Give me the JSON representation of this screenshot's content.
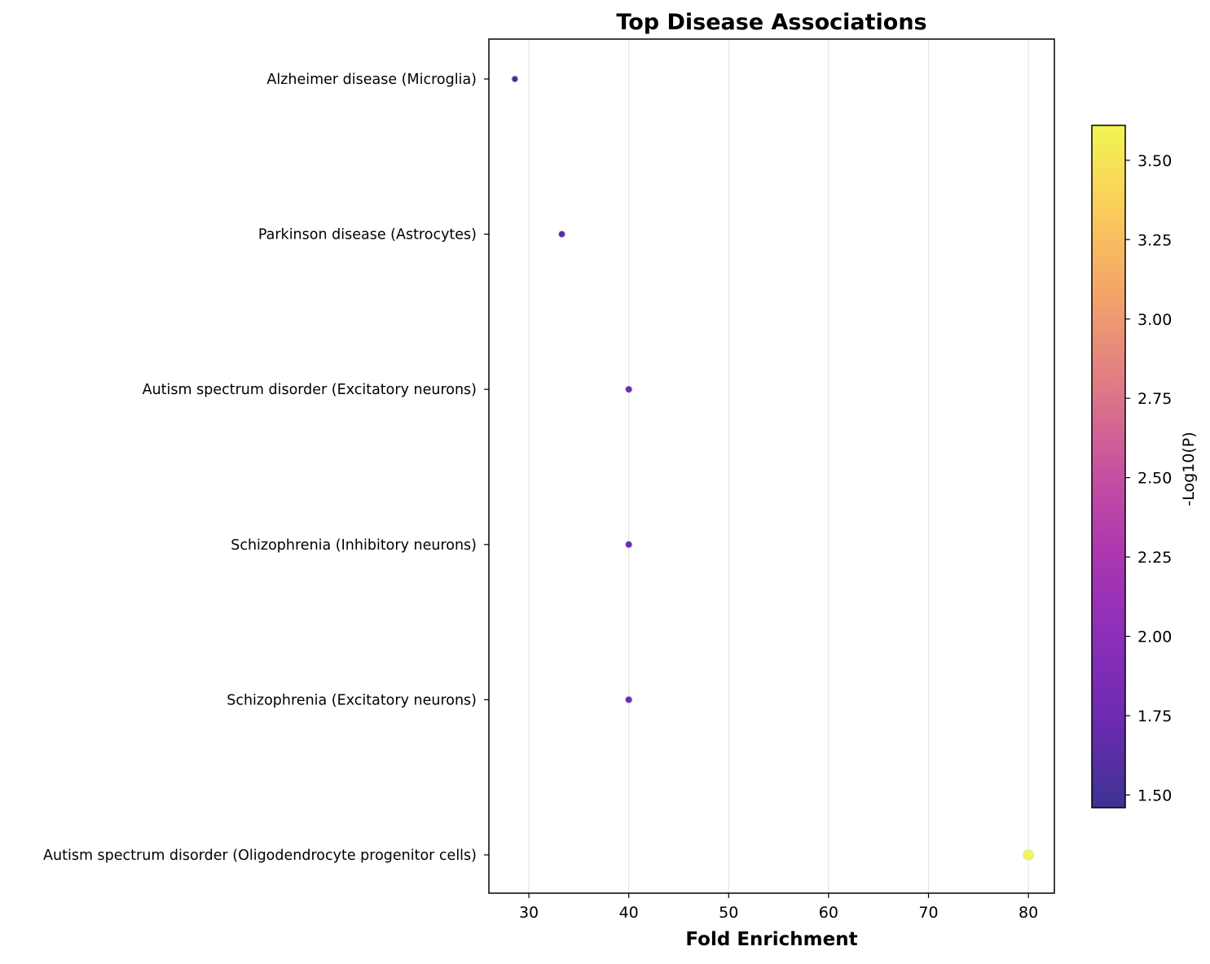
{
  "chart_data": {
    "type": "scatter",
    "title": "Top Disease Associations",
    "xlabel": "Fold Enrichment",
    "ylabel": "",
    "xlim": [
      26,
      82.6
    ],
    "xticks": [
      30,
      40,
      50,
      60,
      70,
      80
    ],
    "grid": "x",
    "categories": [
      "Alzheimer disease (Microglia)",
      "Parkinson disease (Astrocytes)",
      "Autism spectrum disorder (Excitatory neurons)",
      "Schizophrenia (Inhibitory neurons)",
      "Schizophrenia (Excitatory neurons)",
      "Autism spectrum disorder (Oligodendrocyte progenitor cells)"
    ],
    "points": [
      {
        "category": "Alzheimer disease (Microglia)",
        "x": 28.6,
        "neg_log10_p": 1.49
      },
      {
        "category": "Parkinson disease (Astrocytes)",
        "x": 33.3,
        "neg_log10_p": 1.62
      },
      {
        "category": "Autism spectrum disorder (Excitatory neurons)",
        "x": 40.0,
        "neg_log10_p": 1.78
      },
      {
        "category": "Schizophrenia (Inhibitory neurons)",
        "x": 40.0,
        "neg_log10_p": 1.78
      },
      {
        "category": "Schizophrenia (Excitatory neurons)",
        "x": 40.0,
        "neg_log10_p": 1.78
      },
      {
        "category": "Autism spectrum disorder (Oligodendrocyte progenitor cells)",
        "x": 80.0,
        "neg_log10_p": 3.61
      }
    ],
    "colorbar": {
      "label": "-Log10(P)",
      "range": [
        1.46,
        3.61
      ],
      "ticks": [
        "1.50",
        "1.75",
        "2.00",
        "2.25",
        "2.50",
        "2.75",
        "3.00",
        "3.25",
        "3.50"
      ],
      "colormap": "plasma",
      "colors": [
        "#3d3393",
        "#6b2bb0",
        "#8c2eba",
        "#ac37b0",
        "#c9539f",
        "#e07c84",
        "#f4a36a",
        "#fbcb5a",
        "#f1f653"
      ]
    },
    "point_edge_color": "#dddddd"
  }
}
